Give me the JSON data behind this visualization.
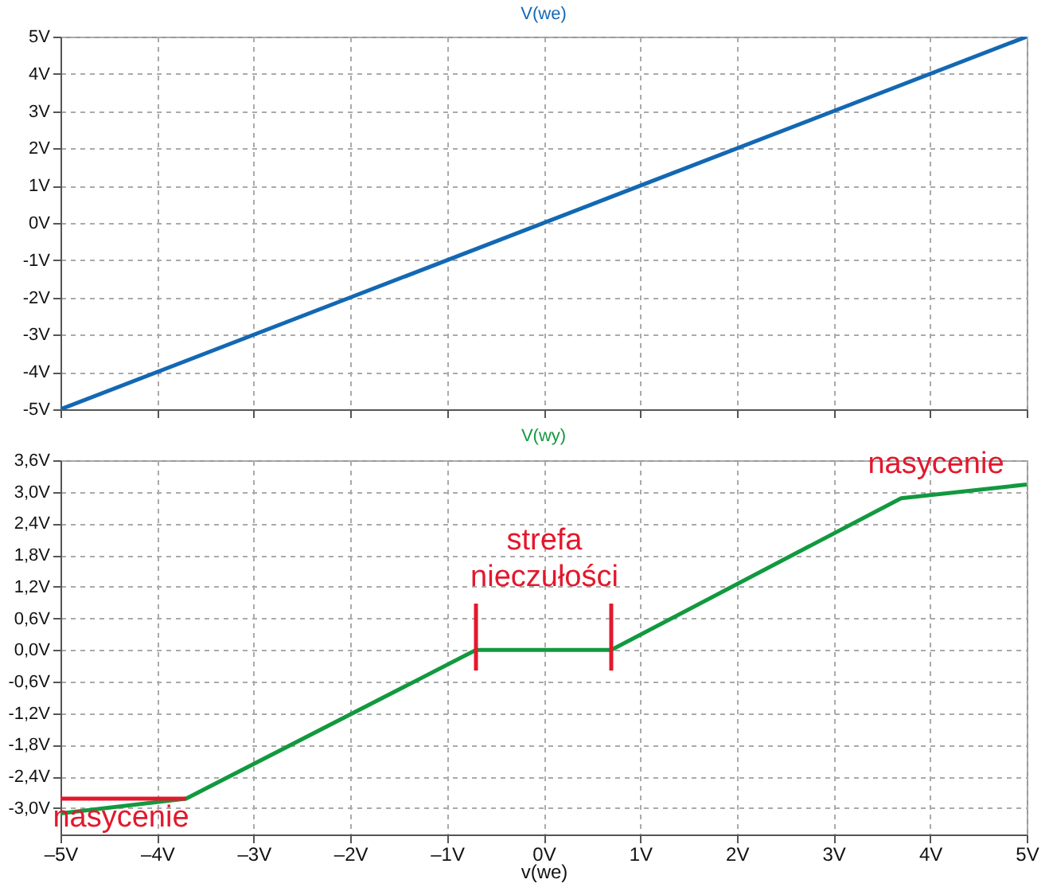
{
  "chart_data": [
    {
      "type": "line",
      "title": "V(we)",
      "xlim": [
        -5,
        5
      ],
      "ylim": [
        -5,
        5
      ],
      "xticks": [
        {
          "value": -5,
          "label": null
        },
        {
          "value": -4,
          "label": null
        },
        {
          "value": -3,
          "label": null
        },
        {
          "value": -2,
          "label": null
        },
        {
          "value": -1,
          "label": null
        },
        {
          "value": 0,
          "label": null
        },
        {
          "value": 1,
          "label": null
        },
        {
          "value": 2,
          "label": null
        },
        {
          "value": 3,
          "label": null
        },
        {
          "value": 4,
          "label": null
        },
        {
          "value": 5,
          "label": null
        }
      ],
      "yticks": [
        {
          "value": -5,
          "label": "-5V"
        },
        {
          "value": -4,
          "label": "-4V"
        },
        {
          "value": -3,
          "label": "-3V"
        },
        {
          "value": -2,
          "label": "-2V"
        },
        {
          "value": -1,
          "label": "-1V"
        },
        {
          "value": 0,
          "label": "0V"
        },
        {
          "value": 1,
          "label": "1V"
        },
        {
          "value": 2,
          "label": "2V"
        },
        {
          "value": 3,
          "label": "3V"
        },
        {
          "value": 4,
          "label": "4V"
        },
        {
          "value": 5,
          "label": "5V"
        }
      ],
      "tick_labels": "y",
      "grid": true,
      "series": [
        {
          "color": "#1368b3",
          "x": [
            -5,
            5
          ],
          "values": [
            -5,
            5
          ]
        }
      ]
    },
    {
      "type": "line",
      "title": "V(wy)",
      "xlabel": "v(we)",
      "xlim": [
        -5,
        5
      ],
      "ylim": [
        -3.5,
        3.6
      ],
      "xticks": [
        {
          "value": -5,
          "label": "–5V"
        },
        {
          "value": -4,
          "label": "–4V"
        },
        {
          "value": -3,
          "label": "–3V"
        },
        {
          "value": -2,
          "label": "–2V"
        },
        {
          "value": -1,
          "label": "–1V"
        },
        {
          "value": 0,
          "label": "0V"
        },
        {
          "value": 1,
          "label": "1V"
        },
        {
          "value": 2,
          "label": "2V"
        },
        {
          "value": 3,
          "label": "3V"
        },
        {
          "value": 4,
          "label": "4V"
        },
        {
          "value": 5,
          "label": "5V"
        }
      ],
      "yticks": [
        {
          "value": -3.0,
          "label": "-3,0V"
        },
        {
          "value": -2.4,
          "label": "-2,4V"
        },
        {
          "value": -1.8,
          "label": "-1,8V"
        },
        {
          "value": -1.2,
          "label": "-1,2V"
        },
        {
          "value": -0.6,
          "label": "-0,6V"
        },
        {
          "value": 0,
          "label": "0,0V"
        },
        {
          "value": 0.6,
          "label": "0,6V"
        },
        {
          "value": 1.2,
          "label": "1,2V"
        },
        {
          "value": 1.8,
          "label": "1,8V"
        },
        {
          "value": 2.4,
          "label": "2,4V"
        },
        {
          "value": 3.0,
          "label": "3,0V"
        },
        {
          "value": 3.6,
          "label": "3,6V"
        }
      ],
      "grid": true,
      "annotations": [
        "nasycenie",
        "nasycenie",
        "strefa nieczułości"
      ],
      "series": [
        {
          "color": "#12993f",
          "x": [
            -5,
            -3.7,
            -0.7,
            0.7,
            3.7,
            5
          ],
          "values": [
            -3.1,
            -2.82,
            0,
            0,
            2.88,
            3.14
          ]
        },
        {
          "color": "#e3182d",
          "x": [
            -5,
            -3.7
          ],
          "values": [
            -2.82,
            -2.82
          ]
        },
        {
          "color": "#e3182d",
          "x": [
            -0.7,
            -0.7
          ],
          "values": [
            0.88,
            -0.39
          ]
        },
        {
          "color": "#e3182d",
          "x": [
            0.7,
            0.7
          ],
          "values": [
            0.88,
            -0.39
          ]
        }
      ]
    }
  ]
}
